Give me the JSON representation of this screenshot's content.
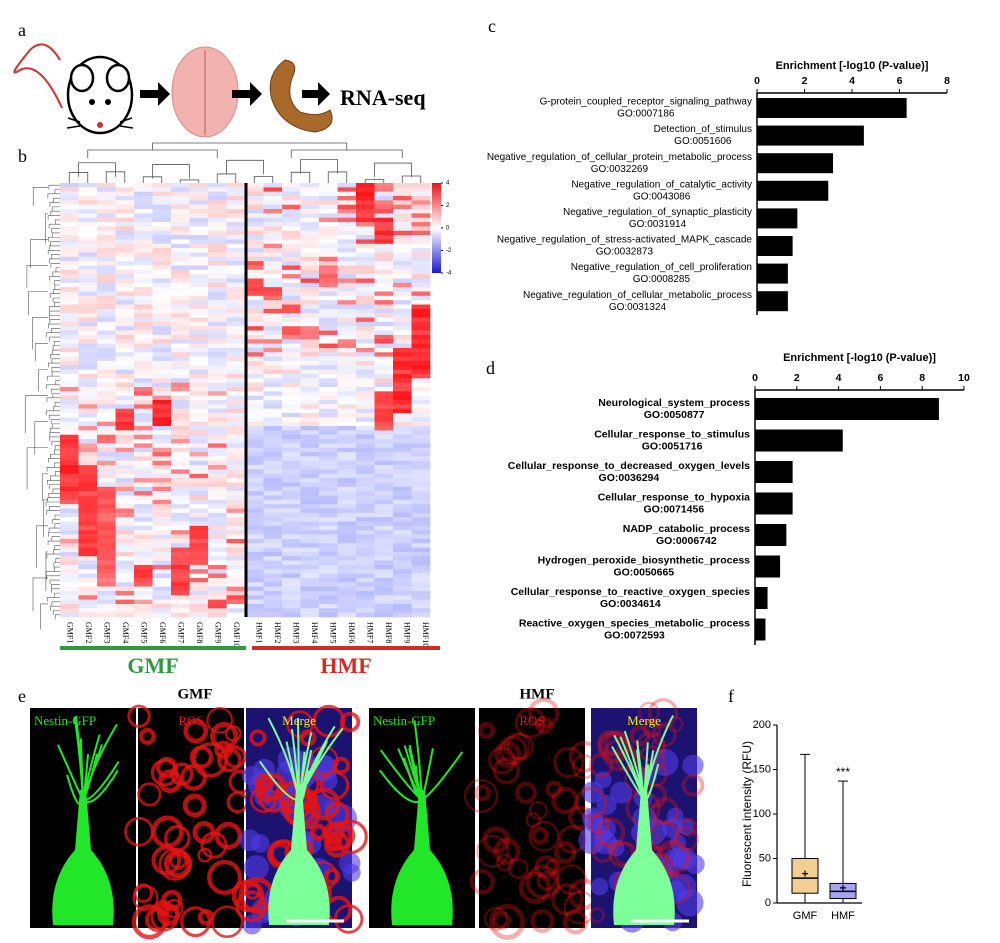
{
  "panel_labels": [
    "a",
    "b",
    "c",
    "d",
    "e",
    "f"
  ],
  "workflow": {
    "label": "RNA-seq"
  },
  "heatmap": {
    "columns": [
      "GMF1",
      "GMF2",
      "GMF3",
      "GMF4",
      "GMF5",
      "GMF6",
      "GMF7",
      "GMF8",
      "GMF9",
      "GMF10",
      "HMF1",
      "HMF2",
      "HMF3",
      "HMF4",
      "HMF5",
      "HMF6",
      "HMF7",
      "HMF8",
      "HMF9",
      "HMF10"
    ],
    "colorbar_ticks": [
      4,
      2,
      0,
      -2,
      -4
    ],
    "groups": [
      {
        "name": "GMF",
        "color": "#2e9a3c"
      },
      {
        "name": "HMF",
        "color": "#d42a2a"
      }
    ]
  },
  "imaging": {
    "groups": [
      {
        "title": "GMF",
        "channels": [
          "Nestin-GFP",
          "ROS",
          "Merge"
        ]
      },
      {
        "title": "HMF",
        "channels": [
          "Nestin-GFP",
          "ROS",
          "Merge"
        ]
      }
    ]
  },
  "chart_data": [
    {
      "type": "bar",
      "horizontal": true,
      "title": "Enrichment [-log10 (P-value)]",
      "categories": [
        "G-protein_coupled_receptor_signaling_pathway",
        "Detection_of_stimulus",
        "Negative_regulation_of_cellular_protein_metabolic_process",
        "Negative_regulation_of_catalytic_activity",
        "Negative_regulation_of_synaptic_plasticity",
        "Negative_regulation_of_stress-activated_MAPK_cascade",
        "Negative_regulation_of_cell_proliferation",
        "Negative_regulation_of_cellular_metabolic_process"
      ],
      "category_ids": [
        "GO:0007186",
        "GO:0051606",
        "GO:0032269",
        "GO:0043086",
        "GO:0031914",
        "GO:0032873",
        "GO:0008285",
        "GO:0031324"
      ],
      "values": [
        6.3,
        4.5,
        3.2,
        3.0,
        1.7,
        1.5,
        1.3,
        1.3
      ],
      "color": "#000000",
      "xlim": [
        0,
        8
      ],
      "xticks": [
        0,
        2,
        4,
        6,
        8
      ]
    },
    {
      "type": "bar",
      "horizontal": true,
      "title": "Enrichment [-log10 (P-value)]",
      "categories": [
        "Neurological_system_process",
        "Cellular_response_to_stimulus",
        "Cellular_response_to_decreased_oxygen_levels",
        "Cellular_response_to_hypoxia",
        "NADP_catabolic_process",
        "Hydrogen_peroxide_biosynthetic_process",
        "Cellular_response_to_reactive_oxygen_species",
        "Reactive_oxygen_species_metabolic_process"
      ],
      "category_ids": [
        "GO:0050877",
        "GO:0051716",
        "GO:0036294",
        "GO:0071456",
        "GO:0006742",
        "GO:0050665",
        "GO:0034614",
        "GO:0072593"
      ],
      "values": [
        8.8,
        4.2,
        1.8,
        1.8,
        1.5,
        1.2,
        0.6,
        0.5
      ],
      "color": "#000000",
      "xlim": [
        0,
        10
      ],
      "xticks": [
        0,
        2,
        4,
        6,
        8,
        10
      ]
    },
    {
      "type": "box",
      "ylabel": "Fluorescent intensity (RFU)",
      "categories": [
        "GMF",
        "HMF"
      ],
      "colors": [
        "#e8a43c",
        "#5a5ae6"
      ],
      "min": [
        0,
        0
      ],
      "q1": [
        11,
        5
      ],
      "median": [
        28,
        13
      ],
      "q3": [
        50,
        22
      ],
      "max": [
        167,
        137
      ],
      "mean": [
        33,
        17
      ],
      "annotation": "***",
      "ylim": [
        0,
        200
      ],
      "yticks": [
        0,
        50,
        100,
        150,
        200
      ]
    }
  ]
}
